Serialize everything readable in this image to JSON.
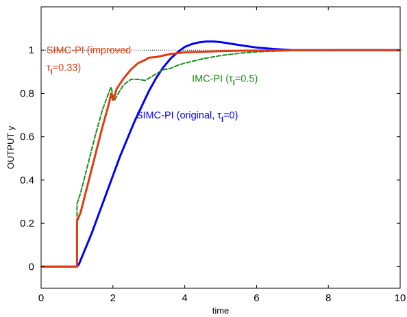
{
  "chart_data": {
    "type": "line",
    "title": "",
    "xlabel": "time",
    "ylabel": "OUTPUT y",
    "xlim": [
      0,
      10
    ],
    "ylim": [
      -0.1,
      1.2
    ],
    "xticks": [
      0,
      2,
      4,
      6,
      8,
      10
    ],
    "yticks": [
      0,
      0.2,
      0.4,
      0.6,
      0.8,
      1
    ],
    "grid": false,
    "legend": "none",
    "reference_line": {
      "y": 1,
      "style": "dotted",
      "color": "#000000"
    },
    "series": [
      {
        "style": "solid",
        "color": "#0000ff",
        "x": [
          0,
          1.0,
          1.05,
          1.2,
          1.4,
          1.6,
          1.8,
          2.0,
          2.2,
          2.4,
          2.6,
          2.8,
          3.0,
          3.2,
          3.4,
          3.6,
          3.8,
          4.0,
          4.2,
          4.4,
          4.6,
          4.8,
          5.0,
          5.2,
          5.5,
          6.0,
          6.5,
          7.0,
          7.5,
          8.0,
          9.0,
          10.0
        ],
        "y": [
          0,
          0,
          0.01,
          0.07,
          0.15,
          0.24,
          0.33,
          0.42,
          0.51,
          0.59,
          0.67,
          0.74,
          0.81,
          0.87,
          0.92,
          0.96,
          0.99,
          1.015,
          1.028,
          1.036,
          1.04,
          1.04,
          1.037,
          1.032,
          1.024,
          1.012,
          1.005,
          1.0,
          1.0,
          1.0,
          1.0,
          1.0
        ]
      },
      {
        "style": "dashed",
        "color": "#1a8c1a",
        "x": [
          0,
          1.0,
          1.0,
          1.1,
          1.3,
          1.5,
          1.7,
          1.9,
          1.95,
          2.0,
          2.05,
          2.15,
          2.3,
          2.5,
          2.7,
          2.9,
          3.0,
          3.2,
          3.4,
          3.6,
          3.8,
          4.0,
          4.5,
          5.0,
          5.5,
          6.0,
          6.5,
          7.0,
          8.0,
          9.0,
          10.0
        ],
        "y": [
          0,
          0,
          0.29,
          0.34,
          0.47,
          0.6,
          0.72,
          0.81,
          0.83,
          0.79,
          0.77,
          0.8,
          0.84,
          0.865,
          0.865,
          0.86,
          0.87,
          0.89,
          0.91,
          0.915,
          0.93,
          0.94,
          0.96,
          0.975,
          0.985,
          0.992,
          0.995,
          0.998,
          1.0,
          1.0,
          1.0
        ]
      },
      {
        "style": "solid",
        "color": "#e03a10",
        "x": [
          0,
          1.0,
          1.0,
          1.1,
          1.3,
          1.5,
          1.7,
          1.9,
          1.95,
          2.0,
          2.05,
          2.1,
          2.3,
          2.5,
          2.7,
          2.9,
          3.0,
          3.2,
          3.4,
          3.6,
          3.8,
          4.0,
          4.5,
          5.0,
          5.5,
          6.0,
          7.0,
          8.0,
          9.0,
          10.0
        ],
        "y": [
          0,
          0,
          0.21,
          0.25,
          0.38,
          0.51,
          0.64,
          0.76,
          0.8,
          0.77,
          0.79,
          0.82,
          0.87,
          0.91,
          0.94,
          0.955,
          0.965,
          0.968,
          0.975,
          0.982,
          0.986,
          0.99,
          0.993,
          0.995,
          0.997,
          0.998,
          0.999,
          1.0,
          1.0,
          1.0
        ]
      }
    ],
    "annotations": [
      {
        "id": "simc-improved-line1",
        "text": "SIMC-PI (improved",
        "x": 0.15,
        "y": 1.0,
        "color": "#e03a10"
      },
      {
        "id": "imc",
        "text": "IMC-PI (τ",
        "sub": "I",
        "after": "=0.5)",
        "x": 4.2,
        "y": 0.87,
        "color": "#1a8c1a"
      },
      {
        "id": "simc-original",
        "text": "SIMC-PI (original, τ",
        "sub": "I",
        "after": "=0)",
        "x": 2.65,
        "y": 0.7,
        "color": "#0000ff"
      }
    ],
    "annotation_line2": {
      "text": "τ",
      "sub": "I",
      "after": "=0.33)",
      "x": 0.15,
      "y": 0.92,
      "color": "#e03a10"
    }
  }
}
